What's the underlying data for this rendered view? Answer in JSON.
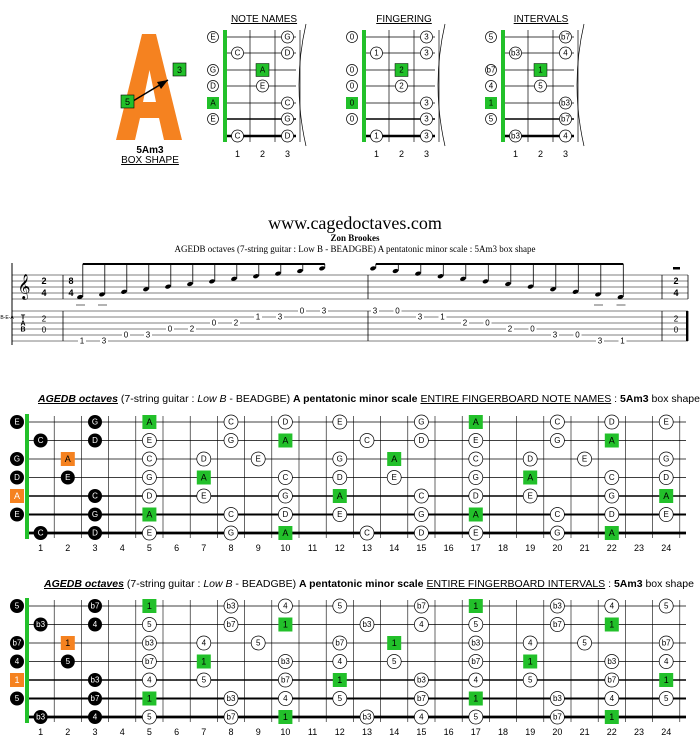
{
  "shape": {
    "big_letter": "A",
    "box_number": "3",
    "box_number_low": "5",
    "name": "5Am3",
    "caption": "BOX SHAPE"
  },
  "diagrams": {
    "note_names": {
      "title": "NOTE NAMES",
      "strings": [
        {
          "open": "E",
          "frets": [
            "",
            "",
            "G"
          ]
        },
        {
          "open": "",
          "frets": [
            "C",
            "",
            "D"
          ]
        },
        {
          "open": "G",
          "frets": [
            "",
            "A",
            ""
          ]
        },
        {
          "open": "D",
          "frets": [
            "",
            "E",
            ""
          ]
        },
        {
          "open": "A",
          "frets": [
            "",
            "",
            "C"
          ]
        },
        {
          "open": "E",
          "frets": [
            "",
            "",
            "G"
          ]
        },
        {
          "open": "",
          "frets": [
            "C",
            "",
            "D"
          ]
        }
      ],
      "open_marks": [
        0,
        2,
        3,
        4,
        5
      ],
      "root_open": [
        4
      ],
      "root_cells": [
        [
          2,
          1
        ]
      ]
    },
    "fingering": {
      "title": "FINGERING",
      "strings": [
        {
          "open": "0",
          "frets": [
            "",
            "",
            "3"
          ]
        },
        {
          "open": "",
          "frets": [
            "1",
            "",
            "3"
          ]
        },
        {
          "open": "0",
          "frets": [
            "",
            "2",
            ""
          ]
        },
        {
          "open": "0",
          "frets": [
            "",
            "2",
            ""
          ]
        },
        {
          "open": "0",
          "frets": [
            "",
            "",
            "3"
          ]
        },
        {
          "open": "0",
          "frets": [
            "",
            "",
            "3"
          ]
        },
        {
          "open": "",
          "frets": [
            "1",
            "",
            "3"
          ]
        }
      ],
      "root_open": [
        4
      ],
      "root_cells": [
        [
          2,
          1
        ]
      ]
    },
    "intervals": {
      "title": "INTERVALS",
      "strings": [
        {
          "open": "5",
          "frets": [
            "",
            "",
            "b7"
          ]
        },
        {
          "open": "",
          "frets": [
            "b3",
            "",
            "4"
          ]
        },
        {
          "open": "b7",
          "frets": [
            "",
            "1",
            ""
          ]
        },
        {
          "open": "4",
          "frets": [
            "",
            "5",
            ""
          ]
        },
        {
          "open": "1",
          "frets": [
            "",
            "",
            "b3"
          ]
        },
        {
          "open": "5",
          "frets": [
            "",
            "",
            "b7"
          ]
        },
        {
          "open": "",
          "frets": [
            "b3",
            "",
            "4"
          ]
        }
      ],
      "root_open": [
        4
      ],
      "root_cells": [
        [
          2,
          1
        ]
      ]
    },
    "fret_numbers": [
      "1",
      "2",
      "3"
    ]
  },
  "header": {
    "site": "www.cagedoctaves.com",
    "author": "Zon Brookes",
    "subtitle": "AGEDB octaves (7-string guitar : Low B - BEADGBE) A pentatonic minor scale : 5Am3 box shape"
  },
  "tab": {
    "time_top": "2",
    "time_bottom": "4",
    "time_top_mid": "8",
    "time_bottom_mid": "4",
    "clef_label": "TAB",
    "tuning_label": "B-E-A",
    "first_chord": [
      "2",
      "0"
    ],
    "last_chord": [
      "2",
      "0"
    ],
    "run": [
      {
        "s": 6,
        "f": "1"
      },
      {
        "s": 6,
        "f": "3"
      },
      {
        "s": 5,
        "f": "0"
      },
      {
        "s": 5,
        "f": "3"
      },
      {
        "s": 4,
        "f": "0"
      },
      {
        "s": 4,
        "f": "2"
      },
      {
        "s": 3,
        "f": "0"
      },
      {
        "s": 3,
        "f": "2"
      },
      {
        "s": 2,
        "f": "1"
      },
      {
        "s": 2,
        "f": "3"
      },
      {
        "s": 1,
        "f": "0"
      },
      {
        "s": 1,
        "f": "3"
      },
      {
        "s": 1,
        "f": "3"
      },
      {
        "s": 1,
        "f": "0"
      },
      {
        "s": 2,
        "f": "3"
      },
      {
        "s": 2,
        "f": "1"
      },
      {
        "s": 3,
        "f": "2"
      },
      {
        "s": 3,
        "f": "0"
      },
      {
        "s": 4,
        "f": "2"
      },
      {
        "s": 4,
        "f": "0"
      },
      {
        "s": 5,
        "f": "3"
      },
      {
        "s": 5,
        "f": "0"
      },
      {
        "s": 6,
        "f": "3"
      },
      {
        "s": 6,
        "f": "1"
      }
    ]
  },
  "board_notes": {
    "title_parts": [
      "AGEDB octaves",
      " (7-string guitar : ",
      "Low B",
      " - BEADGBE) ",
      "A pentatonic minor scale",
      " ",
      "ENTIRE FINGERBOARD NOTE NAMES",
      " : ",
      "5Am3",
      " box shape"
    ],
    "open": [
      "E",
      "C",
      "G",
      "D",
      "A",
      "E",
      "C"
    ],
    "open_kind": [
      "black",
      "black",
      "black",
      "black",
      "orange",
      "black",
      "black"
    ],
    "strings": [
      {
        "0": "E",
        "3": "G",
        "5": "A",
        "8": "C",
        "10": "D",
        "12": "E",
        "15": "G",
        "17": "A",
        "20": "C",
        "22": "D",
        "24": "E"
      },
      {
        "1": "C",
        "3": "D",
        "5": "E",
        "8": "G",
        "10": "A",
        "13": "C",
        "15": "D",
        "17": "E",
        "20": "G",
        "22": "A"
      },
      {
        "0": "G",
        "2": "A",
        "5": "C",
        "7": "D",
        "9": "E",
        "12": "G",
        "14": "A",
        "17": "C",
        "19": "D",
        "21": "E",
        "24": "G"
      },
      {
        "0": "D",
        "2": "E",
        "5": "G",
        "7": "A",
        "10": "C",
        "12": "D",
        "14": "E",
        "17": "G",
        "19": "A",
        "22": "C",
        "24": "D"
      },
      {
        "0": "A",
        "3": "C",
        "5": "D",
        "7": "E",
        "10": "G",
        "12": "A",
        "15": "C",
        "17": "D",
        "19": "E",
        "22": "G",
        "24": "A"
      },
      {
        "0": "E",
        "3": "G",
        "5": "A",
        "8": "C",
        "10": "D",
        "12": "E",
        "15": "G",
        "17": "A",
        "20": "C",
        "22": "D",
        "24": "E"
      },
      {
        "1": "C",
        "3": "D",
        "5": "E",
        "8": "G",
        "10": "A",
        "13": "C",
        "15": "D",
        "17": "E",
        "20": "G",
        "22": "A"
      }
    ],
    "root_label": "A"
  },
  "board_intervals": {
    "title_parts": [
      "AGEDB octaves",
      " (7-string guitar : ",
      "Low B",
      " - BEADGBE) ",
      "A pentatonic minor scale",
      " ",
      "ENTIRE FINGERBOARD INTERVALS",
      " : ",
      "5Am3",
      " box shape"
    ],
    "open": [
      "5",
      "b3",
      "b7",
      "4",
      "1",
      "5",
      "b3"
    ],
    "strings": [
      {
        "0": "5",
        "3": "b7",
        "5": "1",
        "8": "b3",
        "10": "4",
        "12": "5",
        "15": "b7",
        "17": "1",
        "20": "b3",
        "22": "4",
        "24": "5"
      },
      {
        "1": "b3",
        "3": "4",
        "5": "5",
        "8": "b7",
        "10": "1",
        "13": "b3",
        "15": "4",
        "17": "5",
        "20": "b7",
        "22": "1"
      },
      {
        "0": "b7",
        "2": "1",
        "5": "b3",
        "7": "4",
        "9": "5",
        "12": "b7",
        "14": "1",
        "17": "b3",
        "19": "4",
        "21": "5",
        "24": "b7"
      },
      {
        "0": "4",
        "2": "5",
        "5": "b7",
        "7": "1",
        "10": "b3",
        "12": "4",
        "14": "5",
        "17": "b7",
        "19": "1",
        "22": "b3",
        "24": "4"
      },
      {
        "0": "1",
        "3": "b3",
        "5": "4",
        "7": "5",
        "10": "b7",
        "12": "1",
        "15": "b3",
        "17": "4",
        "19": "5",
        "22": "b7",
        "24": "1"
      },
      {
        "0": "5",
        "3": "b7",
        "5": "1",
        "8": "b3",
        "10": "4",
        "12": "5",
        "15": "b7",
        "17": "1",
        "20": "b3",
        "22": "4",
        "24": "5"
      },
      {
        "1": "b3",
        "3": "4",
        "5": "5",
        "8": "b7",
        "10": "1",
        "13": "b3",
        "15": "4",
        "17": "5",
        "20": "b7",
        "22": "1"
      }
    ],
    "root_label": "1"
  },
  "fret_numbers": [
    "1",
    "2",
    "3",
    "4",
    "5",
    "6",
    "7",
    "8",
    "9",
    "10",
    "11",
    "12",
    "13",
    "14",
    "15",
    "16",
    "17",
    "18",
    "19",
    "20",
    "21",
    "22",
    "23",
    "24"
  ],
  "colors": {
    "root": "#22c02a",
    "orange": "#f58220",
    "nut": "#22c02a"
  }
}
